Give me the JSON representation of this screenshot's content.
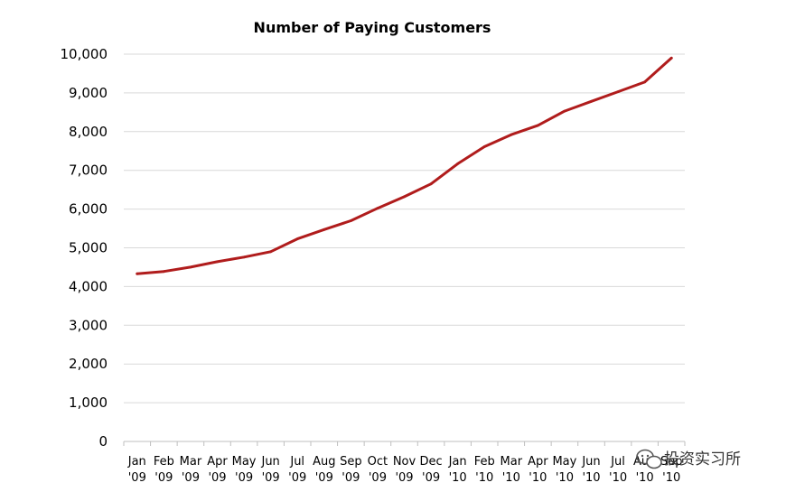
{
  "chart_data": {
    "type": "line",
    "title": "Number of Paying Customers",
    "xlabel": "",
    "ylabel": "",
    "ylim": [
      0,
      10000
    ],
    "yticks": [
      0,
      1000,
      2000,
      3000,
      4000,
      5000,
      6000,
      7000,
      8000,
      9000,
      10000
    ],
    "ytick_labels": [
      "0",
      "1,000",
      "2,000",
      "3,000",
      "4,000",
      "5,000",
      "6,000",
      "7,000",
      "8,000",
      "9,000",
      "10,000"
    ],
    "categories": [
      {
        "month": "Jan",
        "year": "'09"
      },
      {
        "month": "Feb",
        "year": "'09"
      },
      {
        "month": "Mar",
        "year": "'09"
      },
      {
        "month": "Apr",
        "year": "'09"
      },
      {
        "month": "May",
        "year": "'09"
      },
      {
        "month": "Jun",
        "year": "'09"
      },
      {
        "month": "Jul",
        "year": "'09"
      },
      {
        "month": "Aug",
        "year": "'09"
      },
      {
        "month": "Sep",
        "year": "'09"
      },
      {
        "month": "Oct",
        "year": "'09"
      },
      {
        "month": "Nov",
        "year": "'09"
      },
      {
        "month": "Dec",
        "year": "'09"
      },
      {
        "month": "Jan",
        "year": "'10"
      },
      {
        "month": "Feb",
        "year": "'10"
      },
      {
        "month": "Mar",
        "year": "'10"
      },
      {
        "month": "Apr",
        "year": "'10"
      },
      {
        "month": "May",
        "year": "'10"
      },
      {
        "month": "Jun",
        "year": "'10"
      },
      {
        "month": "Jul",
        "year": "'10"
      },
      {
        "month": "Aug",
        "year": "'10"
      },
      {
        "month": "Sep",
        "year": "'10"
      }
    ],
    "series": [
      {
        "name": "Paying Customers",
        "color": "#b01c1c",
        "values": [
          4330,
          4390,
          4500,
          4640,
          4760,
          4900,
          5230,
          5470,
          5700,
          6020,
          6320,
          6650,
          7170,
          7610,
          7920,
          8160,
          8530,
          8780,
          9030,
          9280,
          9900
        ]
      }
    ],
    "grid": true,
    "legend": "none"
  },
  "watermark": {
    "icon": "wechat-icon",
    "text": "投资实习所"
  }
}
